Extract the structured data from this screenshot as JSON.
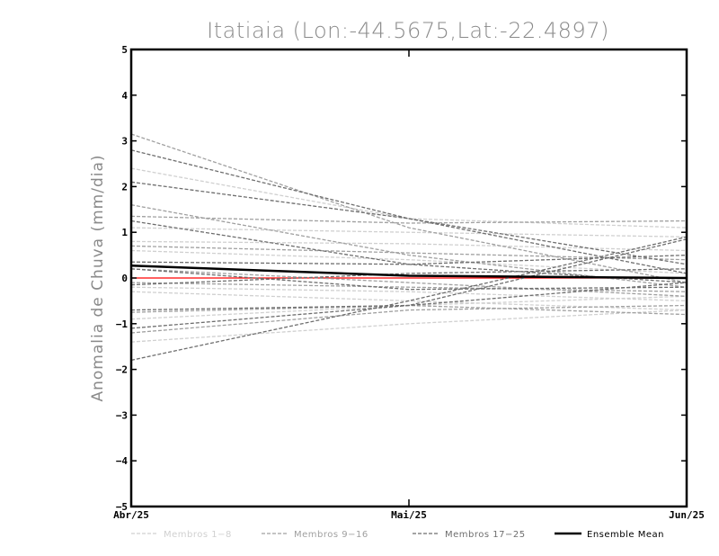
{
  "chart_data": {
    "type": "line",
    "title": "Itatiaia (Lon:-44.5675,Lat:-22.4897)",
    "ylabel": "Anomalia de Chuva (mm/dia)",
    "xlabel": "",
    "categories": [
      "Abr/25",
      "Mai/25",
      "Jun/25"
    ],
    "ylim": [
      -5,
      5
    ],
    "yticks": [
      -5,
      -4,
      -3,
      -2,
      -1,
      0,
      1,
      2,
      3,
      4,
      5
    ],
    "zero_line_color": "#ff0000",
    "groups": [
      {
        "name": "Membros 1-8",
        "color": "#d0d0d0",
        "series": [
          [
            2.4,
            1.3,
            1.1
          ],
          [
            0.8,
            0.75,
            0.6
          ],
          [
            -0.2,
            -0.3,
            -0.5
          ],
          [
            -1.4,
            -1.0,
            -0.7
          ],
          [
            0.6,
            0.4,
            0.1
          ],
          [
            -0.3,
            -0.5,
            -0.7
          ],
          [
            1.1,
            1.0,
            0.9
          ],
          [
            -0.9,
            -0.6,
            -0.4
          ]
        ]
      },
      {
        "name": "Membros 9-16",
        "color": "#a0a0a0",
        "series": [
          [
            3.15,
            1.1,
            -0.1
          ],
          [
            1.35,
            1.2,
            1.25
          ],
          [
            0.7,
            0.55,
            0.4
          ],
          [
            -0.1,
            -0.2,
            -0.3
          ],
          [
            -1.2,
            -0.7,
            -0.6
          ],
          [
            1.6,
            0.5,
            -0.2
          ],
          [
            -0.75,
            -0.6,
            -0.8
          ],
          [
            0.2,
            -0.1,
            -0.4
          ]
        ]
      },
      {
        "name": "Membros 17-25",
        "color": "#6e6e6e",
        "series": [
          [
            2.8,
            1.3,
            0.1
          ],
          [
            2.1,
            1.3,
            0.3
          ],
          [
            1.25,
            0.3,
            -0.1
          ],
          [
            0.35,
            0.3,
            0.5
          ],
          [
            -0.15,
            0.1,
            0.2
          ],
          [
            -1.8,
            -0.5,
            0.9
          ],
          [
            -1.1,
            -0.6,
            0.85
          ],
          [
            -0.7,
            -0.6,
            -0.1
          ],
          [
            0.2,
            -0.25,
            -0.2
          ]
        ]
      }
    ],
    "ensemble_mean": {
      "name": "Ensemble Mean",
      "color": "#000000",
      "values": [
        0.27,
        0.05,
        0.0
      ]
    },
    "legend": [
      {
        "label": "Membros 1-8",
        "color": "#d0d0d0",
        "style": "dashed"
      },
      {
        "label": "Membros 9-16",
        "color": "#a0a0a0",
        "style": "dashed"
      },
      {
        "label": "Membros 17-25",
        "color": "#6e6e6e",
        "style": "dashed"
      },
      {
        "label": "Ensemble Mean",
        "color": "#000000",
        "style": "solid"
      }
    ],
    "legend_position": "bottom"
  }
}
